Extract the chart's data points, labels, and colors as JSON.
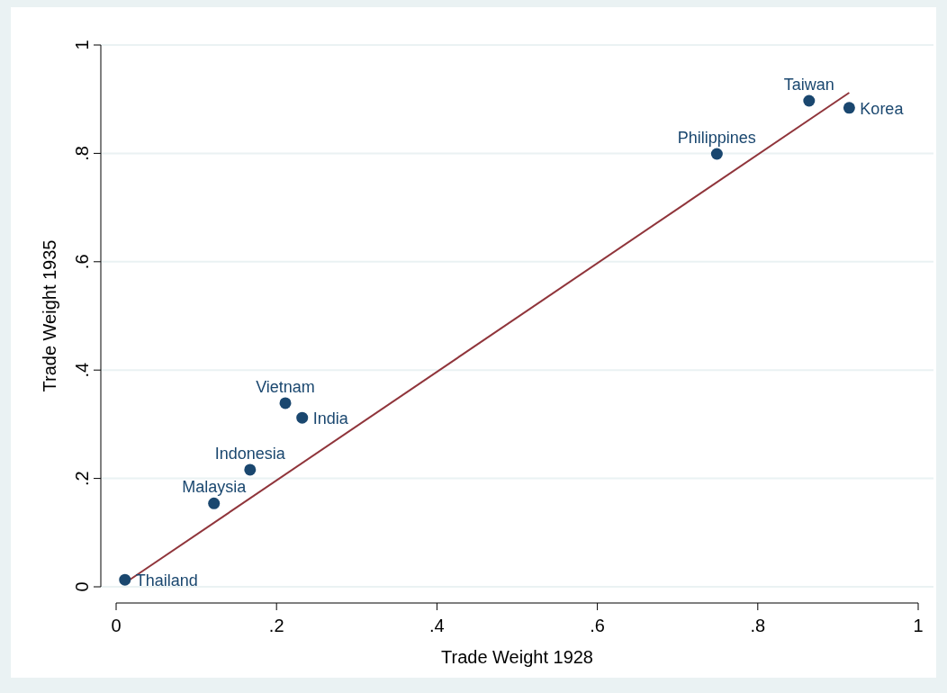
{
  "chart_data": {
    "type": "scatter",
    "xlabel": "Trade Weight 1928",
    "ylabel": "Trade Weight 1935",
    "x": [
      0.011,
      0.122,
      0.167,
      0.211,
      0.232,
      0.749,
      0.864,
      0.914
    ],
    "series": [
      {
        "marker": "circle",
        "color": "#1a476f",
        "values": [
          0.013,
          0.154,
          0.216,
          0.339,
          0.312,
          0.799,
          0.897,
          0.884
        ]
      },
      {
        "type": "line",
        "marker": "none",
        "color": "#90353b",
        "x": [
          0.011,
          0.914
        ],
        "values": [
          0.007,
          0.912
        ]
      }
    ],
    "annotations": [
      {
        "text": "Thailand",
        "x": 0.011,
        "y": 0.013
      },
      {
        "text": "Malaysia",
        "x": 0.122,
        "y": 0.154
      },
      {
        "text": "Indonesia",
        "x": 0.167,
        "y": 0.216
      },
      {
        "text": "Vietnam",
        "x": 0.211,
        "y": 0.339
      },
      {
        "text": "India",
        "x": 0.232,
        "y": 0.312
      },
      {
        "text": "Philippines",
        "x": 0.749,
        "y": 0.799
      },
      {
        "text": "Taiwan",
        "x": 0.864,
        "y": 0.897
      },
      {
        "text": "Korea",
        "x": 0.914,
        "y": 0.884
      }
    ],
    "xlim": [
      0,
      1
    ],
    "ylim": [
      0,
      1
    ],
    "xticks": [
      {
        "value": 0,
        "label": "0"
      },
      {
        "value": 0.2,
        "label": ".2"
      },
      {
        "value": 0.4,
        "label": ".4"
      },
      {
        "value": 0.6,
        "label": ".6"
      },
      {
        "value": 0.8,
        "label": ".8"
      },
      {
        "value": 1,
        "label": "1"
      }
    ],
    "yticks": [
      {
        "value": 0,
        "label": "0"
      },
      {
        "value": 0.2,
        "label": ".2"
      },
      {
        "value": 0.4,
        "label": ".4"
      },
      {
        "value": 0.6,
        "label": ".6"
      },
      {
        "value": 0.8,
        "label": ".8"
      },
      {
        "value": 1,
        "label": "1"
      }
    ],
    "grid": "y",
    "line_style": "solid"
  }
}
